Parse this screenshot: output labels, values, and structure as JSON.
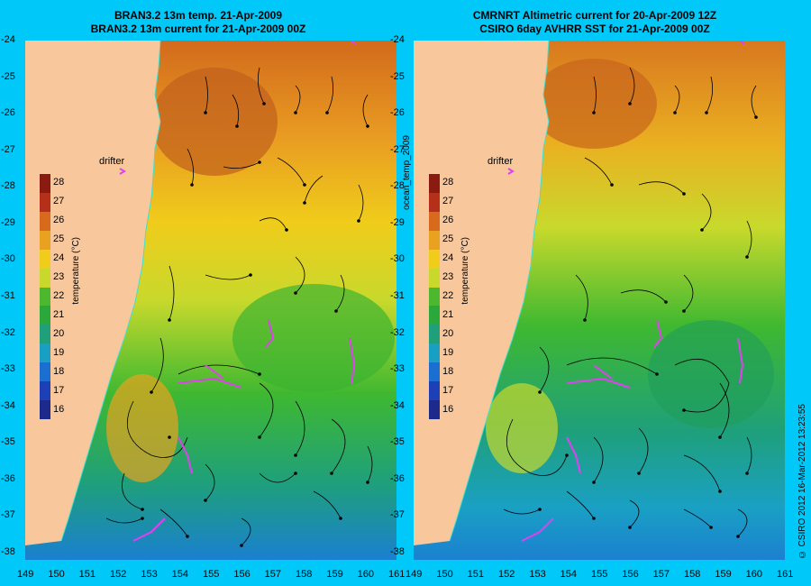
{
  "panels": [
    {
      "title_line1": "BRAN3.2 13m temp. 21-Apr-2009",
      "title_line2": "BRAN3.2 13m current for 21-Apr-2009 00Z",
      "drifter_label": "drifter"
    },
    {
      "title_line1": "CMRNRT Altimetric current for 20-Apr-2009 12Z",
      "title_line2": "CSIRO 6day AVHRR SST for 21-Apr-2009 00Z",
      "drifter_label": "drifter"
    }
  ],
  "colorbar": {
    "label": "temperature (°C)",
    "ticks": [
      "28",
      "27",
      "26",
      "25",
      "24",
      "23",
      "22",
      "21",
      "20",
      "19",
      "18",
      "17",
      "16"
    ],
    "colors": [
      "#8a1b12",
      "#b5301a",
      "#d86a1e",
      "#e8a21f",
      "#f0cc1b",
      "#c8d92c",
      "#4cb82e",
      "#2aa83c",
      "#1fa07a",
      "#1a9fc4",
      "#1b6fd0",
      "#1d3fb8",
      "#1c2a8c"
    ]
  },
  "lat_labels": [
    "-24",
    "-25",
    "-26",
    "-27",
    "-28",
    "-29",
    "-30",
    "-31",
    "-32",
    "-33",
    "-34",
    "-35",
    "-36",
    "-37",
    "-38"
  ],
  "lon_labels": [
    "149",
    "150",
    "151",
    "152",
    "153",
    "154",
    "155",
    "156",
    "157",
    "158",
    "159",
    "160",
    "161"
  ],
  "middle_label": "ocean_temp_2009",
  "credit": "© CSIRO 2012   16-Mar-2012 13:23:55",
  "colors": {
    "background": "#00c8f8",
    "land": "#f8c89c",
    "drifter_track": "#e040f0"
  }
}
